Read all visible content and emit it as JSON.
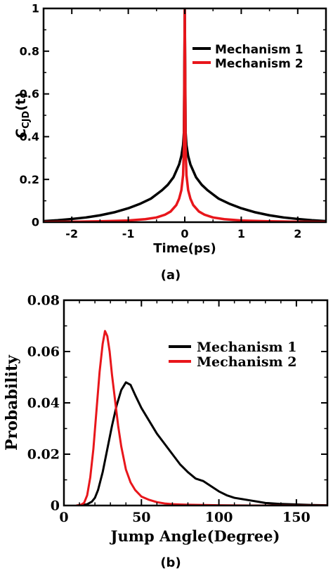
{
  "chart_data": [
    {
      "type": "line",
      "panel_label": "(a)",
      "xlabel": "Time(ps)",
      "ylabel_main": "C",
      "ylabel_sub": "CJD",
      "ylabel_tail": "(t)",
      "xlim": [
        -2.5,
        2.5
      ],
      "ylim": [
        0,
        1
      ],
      "xticks": [
        -2,
        -1,
        0,
        1,
        2
      ],
      "xtick_labels": [
        "-2",
        "-1",
        "0",
        "1",
        "2"
      ],
      "yticks": [
        0,
        0.2,
        0.4,
        0.6,
        0.8,
        1
      ],
      "ytick_labels": [
        "0",
        "0.2",
        "0.4",
        "0.6",
        "0.8",
        "1"
      ],
      "legend_position": "top-right",
      "series": [
        {
          "name": "Mechanism 1",
          "color": "#000000",
          "x": [
            -2.5,
            -2.25,
            -2.0,
            -1.75,
            -1.5,
            -1.25,
            -1.0,
            -0.8,
            -0.6,
            -0.5,
            -0.4,
            -0.3,
            -0.2,
            -0.15,
            -0.1,
            -0.06,
            -0.03,
            -0.015,
            0.0,
            0.015,
            0.03,
            0.06,
            0.1,
            0.15,
            0.2,
            0.3,
            0.4,
            0.5,
            0.6,
            0.8,
            1.0,
            1.25,
            1.5,
            1.75,
            2.0,
            2.25,
            2.5
          ],
          "y": [
            0.005,
            0.009,
            0.015,
            0.022,
            0.032,
            0.046,
            0.065,
            0.085,
            0.11,
            0.13,
            0.15,
            0.175,
            0.21,
            0.24,
            0.27,
            0.31,
            0.36,
            0.42,
            1.0,
            0.42,
            0.36,
            0.31,
            0.27,
            0.24,
            0.21,
            0.175,
            0.15,
            0.13,
            0.11,
            0.085,
            0.065,
            0.046,
            0.032,
            0.022,
            0.015,
            0.009,
            0.005
          ]
        },
        {
          "name": "Mechanism 2",
          "color": "#e8161b",
          "x": [
            -2.5,
            -2.0,
            -1.5,
            -1.0,
            -0.7,
            -0.5,
            -0.35,
            -0.25,
            -0.15,
            -0.1,
            -0.06,
            -0.03,
            -0.015,
            0.0,
            0.015,
            0.03,
            0.06,
            0.1,
            0.15,
            0.25,
            0.35,
            0.5,
            0.7,
            1.0,
            1.5,
            2.0,
            2.5
          ],
          "y": [
            0.001,
            0.002,
            0.004,
            0.008,
            0.014,
            0.022,
            0.035,
            0.05,
            0.08,
            0.11,
            0.15,
            0.22,
            0.35,
            1.0,
            0.35,
            0.22,
            0.15,
            0.11,
            0.08,
            0.05,
            0.035,
            0.022,
            0.014,
            0.008,
            0.004,
            0.002,
            0.001
          ]
        }
      ]
    },
    {
      "type": "line",
      "panel_label": "(b)",
      "xlabel": "Jump Angle(Degree)",
      "ylabel": "Probability",
      "xlim": [
        0,
        170
      ],
      "ylim": [
        0,
        0.08
      ],
      "xticks": [
        0,
        50,
        100,
        150
      ],
      "xtick_labels": [
        "0",
        "50",
        "100",
        "150"
      ],
      "yticks": [
        0,
        0.02,
        0.04,
        0.06,
        0.08
      ],
      "ytick_labels": [
        "0",
        "0.02",
        "0.04",
        "0.06",
        "0.08"
      ],
      "legend_position": "top-right",
      "series": [
        {
          "name": "Mechanism 1",
          "color": "#000000",
          "x": [
            10,
            15,
            18,
            20,
            22,
            25,
            28,
            31,
            34,
            37,
            40,
            43,
            46,
            50,
            55,
            60,
            65,
            70,
            75,
            80,
            85,
            90,
            95,
            100,
            105,
            110,
            115,
            120,
            125,
            130,
            140,
            150,
            160,
            170
          ],
          "y": [
            0.0,
            0.0005,
            0.0015,
            0.003,
            0.006,
            0.013,
            0.022,
            0.031,
            0.039,
            0.045,
            0.048,
            0.047,
            0.043,
            0.038,
            0.033,
            0.028,
            0.024,
            0.02,
            0.016,
            0.013,
            0.0105,
            0.0095,
            0.0075,
            0.0055,
            0.004,
            0.003,
            0.0025,
            0.002,
            0.0015,
            0.001,
            0.0006,
            0.0004,
            0.0002,
            0.0001
          ]
        },
        {
          "name": "Mechanism 2",
          "color": "#e8161b",
          "x": [
            8,
            11,
            13,
            15,
            17,
            19,
            21,
            23,
            25,
            26.5,
            28,
            29.5,
            31,
            33,
            35,
            37,
            40,
            43,
            46,
            50,
            55,
            60,
            65,
            70,
            80,
            90,
            100,
            120,
            140,
            170
          ],
          "y": [
            0.0,
            0.0003,
            0.001,
            0.004,
            0.011,
            0.022,
            0.037,
            0.052,
            0.063,
            0.068,
            0.066,
            0.06,
            0.051,
            0.041,
            0.031,
            0.023,
            0.014,
            0.009,
            0.006,
            0.0035,
            0.0022,
            0.0013,
            0.0008,
            0.0005,
            0.0003,
            0.0002,
            0.0001,
            0.0,
            0.0,
            0.0
          ]
        }
      ]
    }
  ]
}
